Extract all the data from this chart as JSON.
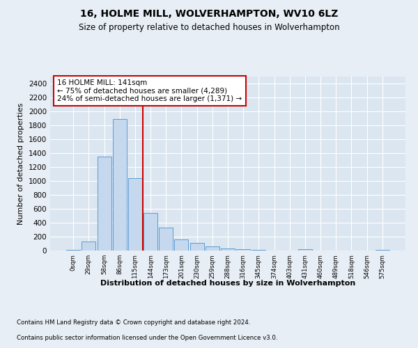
{
  "title1": "16, HOLME MILL, WOLVERHAMPTON, WV10 6LZ",
  "title2": "Size of property relative to detached houses in Wolverhampton",
  "xlabel": "Distribution of detached houses by size in Wolverhampton",
  "ylabel": "Number of detached properties",
  "footnote1": "Contains HM Land Registry data © Crown copyright and database right 2024.",
  "footnote2": "Contains public sector information licensed under the Open Government Licence v3.0.",
  "annotation_line1": "16 HOLME MILL: 141sqm",
  "annotation_line2": "← 75% of detached houses are smaller (4,289)",
  "annotation_line3": "24% of semi-detached houses are larger (1,371) →",
  "bar_labels": [
    "0sqm",
    "29sqm",
    "58sqm",
    "86sqm",
    "115sqm",
    "144sqm",
    "173sqm",
    "201sqm",
    "230sqm",
    "259sqm",
    "288sqm",
    "316sqm",
    "345sqm",
    "374sqm",
    "403sqm",
    "431sqm",
    "460sqm",
    "489sqm",
    "518sqm",
    "546sqm",
    "575sqm"
  ],
  "bar_values": [
    15,
    130,
    1350,
    1890,
    1040,
    540,
    335,
    160,
    110,
    60,
    35,
    20,
    15,
    5,
    0,
    20,
    0,
    0,
    0,
    0,
    15
  ],
  "bar_color": "#c5d8ed",
  "bar_edge_color": "#5b9bd5",
  "vline_color": "#cc0000",
  "ylim": [
    0,
    2500
  ],
  "yticks": [
    0,
    200,
    400,
    600,
    800,
    1000,
    1200,
    1400,
    1600,
    1800,
    2000,
    2200,
    2400
  ],
  "bg_color": "#e8eef5",
  "plot_bg_color": "#dce6f1",
  "grid_color": "#ffffff",
  "annotation_box_color": "#ffffff",
  "annotation_box_edge": "#cc0000"
}
